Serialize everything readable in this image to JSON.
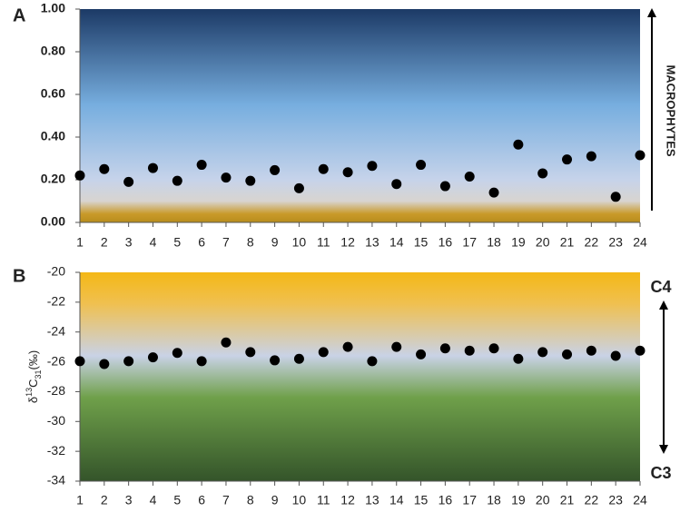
{
  "chart_data": [
    {
      "type": "scatter",
      "panel_label": "A",
      "annotation": "MACROPHYTES",
      "x": [
        1,
        2,
        3,
        4,
        5,
        6,
        7,
        8,
        9,
        10,
        11,
        12,
        13,
        14,
        15,
        16,
        17,
        18,
        19,
        20,
        21,
        22,
        23,
        24
      ],
      "values": [
        0.22,
        0.25,
        0.19,
        0.255,
        0.195,
        0.27,
        0.21,
        0.195,
        0.245,
        0.16,
        0.25,
        0.235,
        0.265,
        0.18,
        0.27,
        0.17,
        0.215,
        0.14,
        0.365,
        0.23,
        0.295,
        0.31,
        0.12,
        0.315
      ],
      "color": "#000000",
      "xlim": [
        1,
        24
      ],
      "xticks": [
        1,
        2,
        3,
        4,
        5,
        6,
        7,
        8,
        9,
        10,
        11,
        12,
        13,
        14,
        15,
        16,
        17,
        18,
        19,
        20,
        21,
        22,
        23,
        24
      ],
      "ylim": [
        0,
        1
      ],
      "yticks": [
        {
          "value": 0,
          "label": "0.00"
        },
        {
          "value": 0.2,
          "label": "0.20"
        },
        {
          "value": 0.4,
          "label": "0.40"
        },
        {
          "value": 0.6,
          "label": "0.60"
        },
        {
          "value": 0.8,
          "label": "0.80"
        },
        {
          "value": 1,
          "label": "1.00"
        }
      ]
    },
    {
      "type": "scatter",
      "panel_label": "B",
      "annotation_top": "C4",
      "annotation_bottom": "C3",
      "y_label": {
        "symbol": "δ",
        "sup": "13",
        "letter": "C",
        "sub": "31",
        "unit": "(‰)"
      },
      "x": [
        1,
        2,
        3,
        4,
        5,
        6,
        7,
        8,
        9,
        10,
        11,
        12,
        13,
        14,
        15,
        16,
        17,
        18,
        19,
        20,
        21,
        22,
        23,
        24
      ],
      "values": [
        -25.96,
        -26.15,
        -25.96,
        -25.7,
        -25.4,
        -25.96,
        -24.7,
        -25.35,
        -25.9,
        -25.8,
        -25.35,
        -25.0,
        -25.96,
        -25.0,
        -25.5,
        -25.1,
        -25.25,
        -25.1,
        -25.8,
        -25.35,
        -25.5,
        -25.25,
        -25.6,
        -25.25
      ],
      "color": "#000000",
      "xlim": [
        1,
        24
      ],
      "xticks": [
        1,
        2,
        3,
        4,
        5,
        6,
        7,
        8,
        9,
        10,
        11,
        12,
        13,
        14,
        15,
        16,
        17,
        18,
        19,
        20,
        21,
        22,
        23,
        24
      ],
      "ylim": [
        -34,
        -20
      ],
      "yticks": [
        -34,
        -32,
        -30,
        -28,
        -26,
        -24,
        -22,
        -20
      ]
    }
  ]
}
